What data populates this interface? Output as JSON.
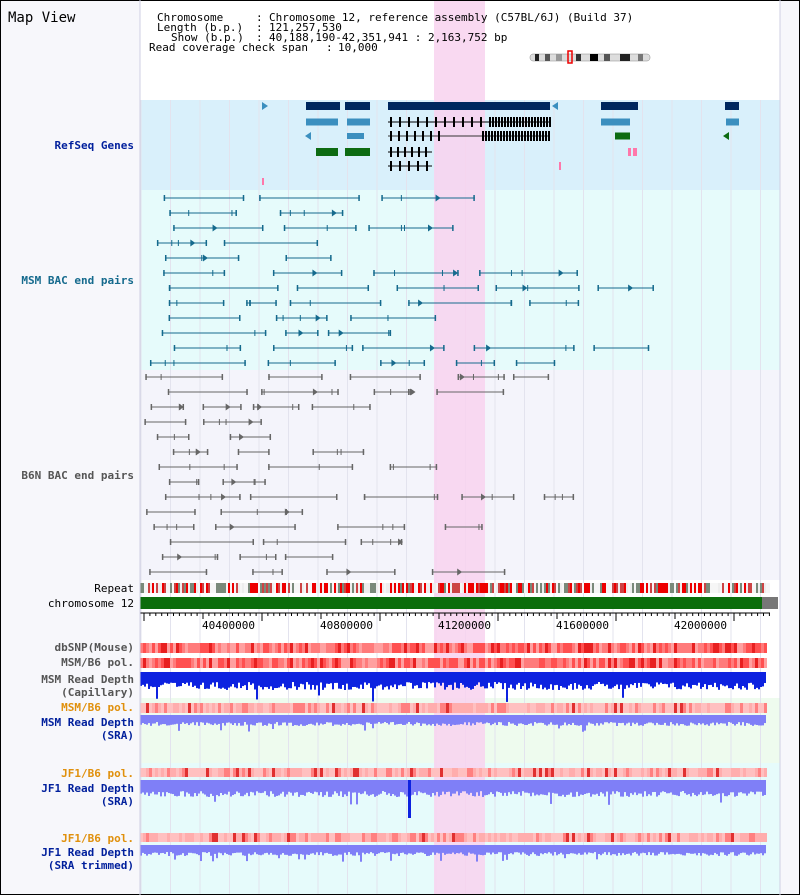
{
  "app": {
    "title": "Map View"
  },
  "info": {
    "chromosome_key": "Chromosome",
    "chromosome_value": "Chromosome 12, reference assembly (C57BL/6J) (Build 37)",
    "length_key": "Length (b.p.)",
    "length_value": "121,257,530",
    "show_key": "Show (b.p.)",
    "show_value": "40,188,190-42,351,941 : 2,163,752 bp",
    "coverage_key": "Read coverage check span",
    "coverage_value": "10,000"
  },
  "tracks": {
    "refseq": {
      "label": "RefSeq Genes"
    },
    "msm_bac": {
      "label": "MSM BAC end pairs"
    },
    "b6n_bac": {
      "label": "B6N BAC end pairs"
    },
    "repeat": {
      "label": "Repeat"
    },
    "chromosome": {
      "label": "chromosome 12"
    },
    "dbsnp": {
      "label": "dbSNP(Mouse)"
    },
    "msm_b6_pol_1": {
      "label": "MSM/B6 pol."
    },
    "msm_depth_cap": {
      "label_line1": "MSM Read Depth",
      "label_line2": "(Capillary)"
    },
    "msm_b6_pol_2": {
      "label": "MSM/B6 pol."
    },
    "msm_depth_sra": {
      "label_line1": "MSM Read Depth",
      "label_line2": "(SRA)"
    },
    "jf1_b6_pol_1": {
      "label": "JF1/B6 pol."
    },
    "jf1_depth_sra": {
      "label_line1": "JF1 Read Depth",
      "label_line2": "(SRA)"
    },
    "jf1_b6_pol_2": {
      "label": "JF1/B6 pol."
    },
    "jf1_depth_trim": {
      "label_line1": "JF1 Read Depth",
      "label_line2": "(SRA trimmed)"
    }
  },
  "axis": {
    "ticks": [
      "40400000",
      "40800000",
      "41200000",
      "41600000",
      "42000000"
    ]
  },
  "colors": {
    "refseq_bg": "#d9f0fb",
    "bac_bg": "#e6fbfb",
    "highlight": "#f8d2ef",
    "refseq_dark": "#00275e",
    "refseq_mid": "#3b8fbf",
    "refseq_green": "#0d6b12",
    "msm_bac": "#156a8d",
    "b6n_bac": "#666666",
    "chromosome_green": "#0b6d0b",
    "label_blue": "#001f9c",
    "label_orange": "#e0900c",
    "label_gray": "#555555",
    "depth_blue": "#0d22e0",
    "depth_lavender": "#7f7ff7"
  }
}
